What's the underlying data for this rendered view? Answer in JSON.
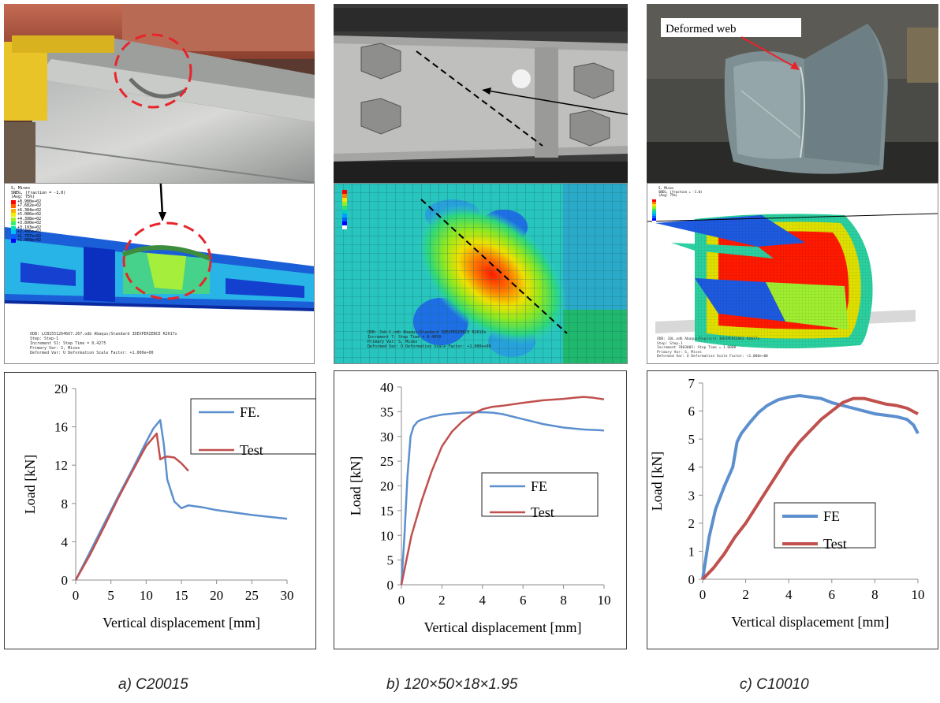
{
  "panels": [
    {
      "test_photo": {
        "label": ""
      },
      "fe_model": {
        "legend_title": "S, Mises\nSNEG, (fraction = -1.0)\n(Avg: 75%)",
        "legend_values": [
          "+8.980e+02",
          "+7.682e+02",
          "+6.384e+02",
          "+5.086e+02",
          "+4.398e+02",
          "+3.890e+02",
          "+3.193e+02",
          "+2.495e+02",
          "+1.797e+02",
          "+1.099e+02"
        ],
        "footer_lines": [
          "ODB: LCB15512646O7.267.odb    Abaqus/Standard 3DEXPERIENCE R2017x",
          "Step: Step-1",
          "Increment    51: Step Time =   0.4275",
          "Primary Var: S, Mises",
          "Deformed Var: U   Deformation Scale Factor: +1.000e+00"
        ]
      },
      "caption": "a) C20015"
    },
    {
      "test_photo": {
        "label": ""
      },
      "fe_model": {
        "legend_title": "",
        "legend_values": [
          "",
          "",
          "",
          "",
          "",
          "",
          "",
          "",
          "",
          ""
        ],
        "footer_lines": [
          "ODB: Job-1.odb    Abaqus/Standard 3DEXPERIENCE R2016x",
          "Increment    7: Step Time = 0.4050",
          "Primary Var: S, Mises",
          "Deformed Var: U   Deformation Scale Factor: +1.000e+00"
        ]
      },
      "caption": "b) 120×50×18×1.95"
    },
    {
      "test_photo": {
        "label": "Deformed web"
      },
      "fe_model": {
        "legend_title": "S, Mises\nSNEG, (fraction = -1.0)\n(Avg: 75%)",
        "legend_values": [
          "+4.562e+02",
          "+4.183e+02",
          "+3.804e+02",
          "+3.425e+02",
          "+3.046e+02",
          "+2.667e+02",
          "+2.288e+02",
          "+1.909e+02",
          "+1.530e+02",
          "+1.151e+02"
        ],
        "footer_lines": [
          "ODB: 10L.odb    Abaqus/Explicit 3DEXPERIENCE R2017x",
          "Step: Step-1",
          "Increment    7003005: Step Time = 1.0000",
          "Primary Var: S, Mises",
          "Deformed Var: U   Deformation Scale Factor: +1.000e+00"
        ]
      },
      "caption": "c) C10010"
    }
  ],
  "colors": {
    "fe": "#5b8fce",
    "test": "#c0504d",
    "axis": "#8c8c8c",
    "fea_contour": [
      "#0000ff",
      "#0060ff",
      "#00c0ff",
      "#00e0b0",
      "#30f070",
      "#a0f020",
      "#f0f000",
      "#ffb000",
      "#ff6000",
      "#ff0000"
    ]
  },
  "chart_data": [
    {
      "type": "line",
      "title": "",
      "xlabel": "Vertical displacement [mm]",
      "ylabel": "Load [kN]",
      "xlim": [
        0,
        30
      ],
      "ylim": [
        0,
        20
      ],
      "xticks": [
        0,
        5,
        10,
        15,
        20,
        25,
        30
      ],
      "yticks": [
        0,
        4,
        8,
        12,
        16,
        20
      ],
      "grid": false,
      "legend_position": "top-right",
      "series": [
        {
          "name": "FE.",
          "color_key": "fe",
          "x": [
            0,
            2,
            4,
            6,
            8,
            10,
            11,
            12,
            12.5,
            13,
            14,
            15,
            16,
            18,
            20,
            25,
            30
          ],
          "y": [
            0,
            2.9,
            5.8,
            8.7,
            11.5,
            14.4,
            15.8,
            16.7,
            14.2,
            10.5,
            8.2,
            7.5,
            7.8,
            7.6,
            7.3,
            6.8,
            6.4
          ]
        },
        {
          "name": "Test",
          "color_key": "test",
          "x": [
            0,
            2,
            4,
            6,
            8,
            10,
            11.5,
            12,
            12.5,
            13,
            14,
            15,
            16
          ],
          "y": [
            0,
            2.6,
            5.5,
            8.5,
            11.3,
            14.0,
            15.3,
            12.6,
            12.8,
            12.9,
            12.8,
            12.2,
            11.4
          ]
        }
      ]
    },
    {
      "type": "line",
      "title": "",
      "xlabel": "Vertical displacement [mm]",
      "ylabel": "Load [kN]",
      "xlim": [
        0,
        10
      ],
      "ylim": [
        0,
        40
      ],
      "xticks": [
        0,
        2,
        4,
        6,
        8,
        10
      ],
      "yticks": [
        0,
        5,
        10,
        15,
        20,
        25,
        30,
        35,
        40
      ],
      "grid": false,
      "legend_position": "right",
      "series": [
        {
          "name": "FE",
          "color_key": "fe",
          "x": [
            0,
            0.15,
            0.3,
            0.45,
            0.6,
            0.8,
            1,
            1.5,
            2,
            3,
            4,
            4.5,
            5,
            6,
            7,
            8,
            9,
            10
          ],
          "y": [
            0,
            10,
            22,
            30,
            32,
            33,
            33.4,
            34,
            34.4,
            34.8,
            34.9,
            34.8,
            34.5,
            33.5,
            32.5,
            31.8,
            31.4,
            31.2
          ]
        },
        {
          "name": "Test",
          "color_key": "test",
          "x": [
            0,
            0.5,
            1,
            1.5,
            2,
            2.5,
            3,
            3.5,
            4,
            4.5,
            5,
            6,
            7,
            8,
            8.5,
            9,
            9.5,
            10
          ],
          "y": [
            0,
            10,
            17,
            23,
            28,
            31,
            33,
            34.5,
            35.5,
            36,
            36.2,
            36.8,
            37.3,
            37.6,
            37.8,
            38,
            37.8,
            37.5
          ]
        }
      ]
    },
    {
      "type": "line",
      "title": "",
      "xlabel": "Vertical displacement [mm]",
      "ylabel": "Load [kN]",
      "xlim": [
        0,
        10
      ],
      "ylim": [
        0,
        7
      ],
      "xticks": [
        0,
        2,
        4,
        6,
        8,
        10
      ],
      "yticks": [
        0,
        1,
        2,
        3,
        4,
        5,
        6,
        7
      ],
      "grid": false,
      "legend_position": "left-center",
      "series": [
        {
          "name": "FE",
          "color_key": "fe",
          "x": [
            0,
            0.3,
            0.6,
            1,
            1.4,
            1.6,
            1.8,
            2.2,
            2.6,
            3,
            3.5,
            4,
            4.5,
            5,
            5.5,
            6,
            6.5,
            7,
            7.5,
            8,
            8.5,
            9,
            9.5,
            9.8,
            10
          ],
          "y": [
            0,
            1.5,
            2.5,
            3.3,
            4.0,
            4.9,
            5.2,
            5.6,
            5.95,
            6.2,
            6.4,
            6.5,
            6.55,
            6.5,
            6.45,
            6.3,
            6.2,
            6.1,
            6.0,
            5.9,
            5.85,
            5.8,
            5.7,
            5.5,
            5.2
          ]
        },
        {
          "name": "Test",
          "color_key": "test",
          "x": [
            0,
            0.5,
            1,
            1.5,
            2,
            2.5,
            3,
            3.5,
            4,
            4.5,
            5,
            5.5,
            6,
            6.5,
            7,
            7.5,
            8,
            8.5,
            9,
            9.5,
            10
          ],
          "y": [
            0,
            0.4,
            0.9,
            1.5,
            2.0,
            2.6,
            3.2,
            3.8,
            4.4,
            4.9,
            5.3,
            5.7,
            6.0,
            6.3,
            6.45,
            6.45,
            6.35,
            6.25,
            6.2,
            6.1,
            5.9
          ]
        }
      ]
    }
  ]
}
